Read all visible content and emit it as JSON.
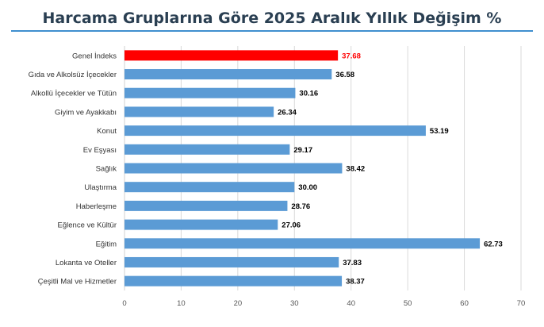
{
  "chart_data": {
    "type": "bar",
    "orientation": "horizontal",
    "title": "Harcama Gruplarına Göre 2025 Aralık Yıllık Değişim %",
    "categories": [
      "Genel İndeks",
      "Gıda ve Alkolsüz İçecekler",
      "Alkollü İçecekler ve Tütün",
      "Giyim ve Ayakkabı",
      "Konut",
      "Ev Eşyası",
      "Sağlık",
      "Ulaştırma",
      "Haberleşme",
      "Eğlence ve Kültür",
      "Eğitim",
      "Lokanta ve Oteller",
      "Çeşitli Mal ve Hizmetler"
    ],
    "values": [
      37.68,
      36.58,
      30.16,
      26.34,
      53.19,
      29.17,
      38.42,
      30.0,
      28.76,
      27.06,
      62.73,
      37.83,
      38.37
    ],
    "value_labels": [
      "37.68",
      "36.58",
      "30.16",
      "26.34",
      "53.19",
      "29.17",
      "38.42",
      "30.00",
      "28.76",
      "27.06",
      "62.73",
      "37.83",
      "38.37"
    ],
    "highlight_index": 0,
    "xlim": [
      0,
      70
    ],
    "xticks": [
      0,
      10,
      20,
      30,
      40,
      50,
      60,
      70
    ],
    "grid": true,
    "legend": "none",
    "colors": {
      "bar": "#5b9bd5",
      "highlight": "#ff0000",
      "highlight_label": "#ff0000",
      "grid": "#d9d9d9",
      "title_rule": "#3f8fcf"
    }
  }
}
